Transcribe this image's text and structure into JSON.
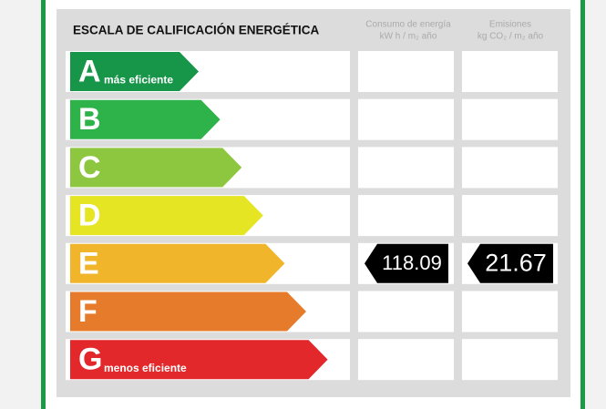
{
  "title": "ESCALA DE CALIFICACIÓN ENERGÉTICA",
  "columns": [
    {
      "line1": "Consumo de energía",
      "line2": "kW h / m₂ año"
    },
    {
      "line1": "Emisiones",
      "line2": "kg CO₂ / m₂ año"
    }
  ],
  "classes": [
    {
      "letter": "A",
      "note": "más eficiente",
      "color": "#17964a"
    },
    {
      "letter": "B",
      "color": "#2db34a"
    },
    {
      "letter": "C",
      "color": "#8dc63f"
    },
    {
      "letter": "D",
      "color": "#e6e524"
    },
    {
      "letter": "E",
      "color": "#f1b52b"
    },
    {
      "letter": "F",
      "color": "#e77b2c"
    },
    {
      "letter": "G",
      "note": "menos eficiente",
      "color": "#e2282a"
    }
  ],
  "rating": {
    "class": "E",
    "consumption": 118.09,
    "emissions": 21.67
  }
}
